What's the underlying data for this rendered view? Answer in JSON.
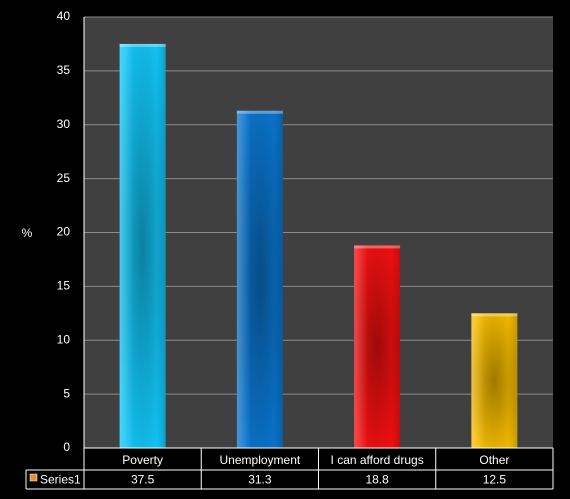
{
  "chart_data": {
    "type": "bar",
    "y_label": "%",
    "categories": [
      "Poverty",
      "Unemployment",
      "I can afford drugs",
      "Other"
    ],
    "series": [
      {
        "name": "Series1",
        "color": "#e8902a",
        "values": [
          37.5,
          31.3,
          18.8,
          12.5
        ],
        "point_colors": [
          "#12c4f5",
          "#0a74cc",
          "#f21010",
          "#f5bb00"
        ]
      }
    ],
    "ylim": [
      0,
      40
    ],
    "yticks": [
      0,
      5,
      10,
      15,
      20,
      25,
      30,
      35,
      40
    ],
    "grid": true,
    "data_table": true
  }
}
